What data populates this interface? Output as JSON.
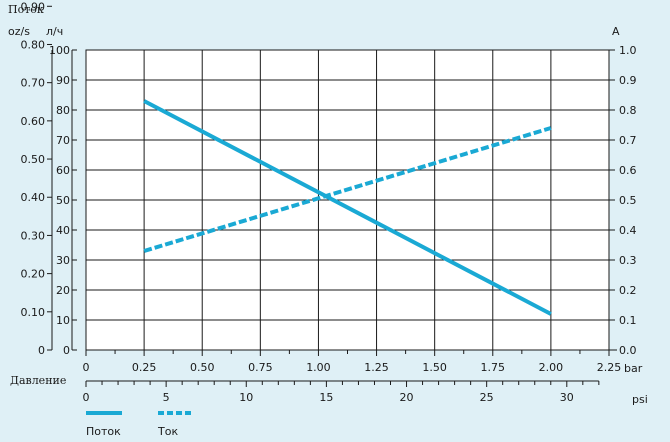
{
  "chart_data": {
    "type": "line",
    "title": "",
    "labels": {
      "flow_title": "Поток",
      "unit_ozs": "oz/s",
      "unit_lh": "л/ч",
      "unit_amp": "A",
      "pressure": "Давление",
      "unit_bar": "bar",
      "unit_psi": "psi"
    },
    "x_bar_ticks": [
      "0",
      "0.25",
      "0.50",
      "0.75",
      "1.00",
      "1.25",
      "1.50",
      "1.75",
      "2.00",
      "2.25"
    ],
    "x_psi_ticks": [
      "0",
      "5",
      "10",
      "15",
      "20",
      "25",
      "30"
    ],
    "y_ozs_ticks": [
      "0",
      "0.10",
      "0.20",
      "0.30",
      "0.40",
      "0.50",
      "0.60",
      "0.70",
      "0.80",
      "0.90"
    ],
    "y_lh_ticks": [
      "0",
      "10",
      "20",
      "30",
      "40",
      "50",
      "60",
      "70",
      "80",
      "90",
      "100"
    ],
    "y_amp_ticks": [
      "0.0",
      "0.1",
      "0.2",
      "0.3",
      "0.4",
      "0.5",
      "0.6",
      "0.7",
      "0.8",
      "0.9",
      "1.0"
    ],
    "xlim_bar": [
      0,
      2.25
    ],
    "ylim_lh": [
      0,
      100
    ],
    "ylim_amp": [
      0,
      1.0
    ],
    "grid": true,
    "legend_position": "bottom-left",
    "series": [
      {
        "name": "Поток",
        "axis": "left",
        "style": "solid",
        "color": "#1aa9d4",
        "points": [
          [
            0.25,
            83
          ],
          [
            2.0,
            12
          ]
        ]
      },
      {
        "name": "Ток",
        "axis": "right",
        "style": "dashed",
        "color": "#1aa9d4",
        "points": [
          [
            0.25,
            0.33
          ],
          [
            2.0,
            0.74
          ]
        ]
      }
    ]
  }
}
